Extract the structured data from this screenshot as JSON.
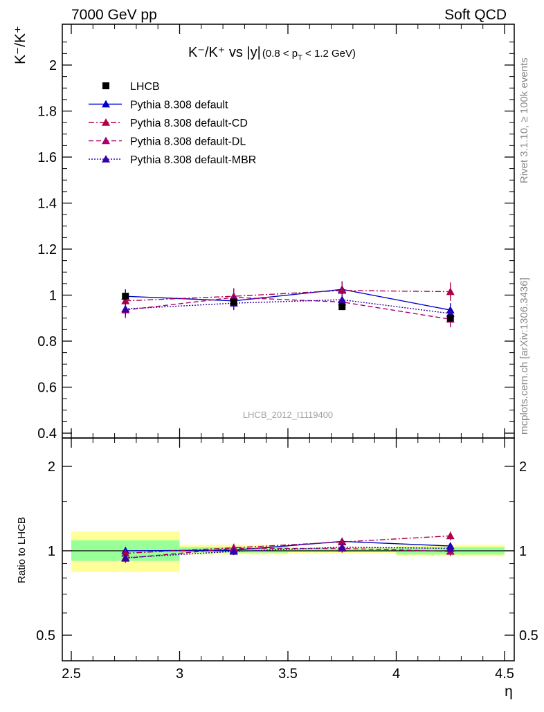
{
  "header": {
    "left": "7000 GeV pp",
    "right": "Soft QCD"
  },
  "title": {
    "main": "K⁻/K⁺ vs |y|",
    "range_open": "(0.8 < p",
    "range_sub": "T",
    "range_close": " < 1.2 GeV)"
  },
  "side_labels": {
    "rivet": "Rivet 3.1.10, ≥ 100k events",
    "mcplots": "mcplots.cern.ch [arXiv:1306.3436]"
  },
  "watermark": "LHCB_2012_I1119400",
  "colors": {
    "data": "#000000",
    "default": "#0000cc",
    "cd": "#b0004a",
    "dl": "#a8006a",
    "mbr": "#3300aa",
    "band_inner": "#99ff99",
    "band_outer": "#ffff99"
  },
  "chart_data": [
    {
      "type": "line",
      "panel": "main",
      "ylabel": "K⁻/K⁺",
      "xlim": [
        2.5,
        4.5
      ],
      "ylim": [
        0.38,
        2.18
      ],
      "yticks": [
        0.4,
        0.6,
        0.8,
        1.0,
        1.2,
        1.4,
        1.6,
        1.8,
        2.0
      ],
      "ytick_labels": [
        "0.4",
        "0.6",
        "0.8",
        "1",
        "1.2",
        "1.4",
        "1.6",
        "1.8",
        "2"
      ],
      "x": [
        2.75,
        3.25,
        3.75,
        4.25
      ],
      "series": [
        {
          "name": "LHCB",
          "style": "data",
          "values": [
            0.995,
            0.97,
            0.95,
            0.9
          ],
          "errors": [
            0.015,
            0.015,
            0.01,
            0.015
          ]
        },
        {
          "name": "Pythia 8.308 default",
          "style": "solid",
          "values": [
            0.995,
            0.975,
            1.025,
            0.935
          ],
          "errors": [
            0.03,
            0.03,
            0.035,
            0.03
          ]
        },
        {
          "name": "Pythia 8.308 default-CD",
          "style": "dashdot",
          "values": [
            0.975,
            0.995,
            1.02,
            1.015
          ],
          "errors": [
            0.035,
            0.035,
            0.035,
            0.04
          ]
        },
        {
          "name": "Pythia 8.308 default-DL",
          "style": "dashed",
          "values": [
            0.935,
            0.99,
            0.97,
            0.895
          ],
          "errors": [
            0.035,
            0.035,
            0.035,
            0.035
          ]
        },
        {
          "name": "Pythia 8.308 default-MBR",
          "style": "dotted",
          "values": [
            0.94,
            0.965,
            0.98,
            0.92
          ],
          "errors": [
            0.03,
            0.03,
            0.03,
            0.03
          ]
        }
      ],
      "legend": "top-left"
    },
    {
      "type": "line",
      "panel": "ratio",
      "ylabel": "Ratio to LHCB",
      "xlabel": "η",
      "xlim": [
        2.5,
        4.5
      ],
      "ylim": [
        0.425,
        2.35
      ],
      "log_scale": true,
      "xticks": [
        2.5,
        3.0,
        3.5,
        4.0,
        4.5
      ],
      "xtick_labels": [
        "2.5",
        "3",
        "3.5",
        "4",
        "4.5"
      ],
      "yticks": [
        0.5,
        1,
        2
      ],
      "ytick_labels": [
        "0.5",
        "1",
        "2"
      ],
      "x": [
        2.75,
        3.25,
        3.75,
        4.25
      ],
      "bins": [
        [
          2.5,
          3.0
        ],
        [
          3.0,
          3.5
        ],
        [
          3.5,
          4.0
        ],
        [
          4.0,
          4.5
        ]
      ],
      "band_inner": [
        [
          0.92,
          1.09
        ],
        [
          0.985,
          1.03
        ],
        [
          0.99,
          1.02
        ],
        [
          0.97,
          1.03
        ]
      ],
      "band_outer": [
        [
          0.84,
          1.17
        ],
        [
          0.97,
          1.05
        ],
        [
          0.98,
          1.03
        ],
        [
          0.955,
          1.05
        ]
      ],
      "series": [
        {
          "name": "Pythia 8.308 default",
          "style": "solid",
          "values": [
            1.0,
            1.005,
            1.08,
            1.04
          ],
          "errors": [
            0.03,
            0.03,
            0.03,
            0.03
          ]
        },
        {
          "name": "Pythia 8.308 default-CD",
          "style": "dashdot",
          "values": [
            0.98,
            1.025,
            1.075,
            1.13
          ],
          "errors": [
            0.035,
            0.035,
            0.035,
            0.04
          ]
        },
        {
          "name": "Pythia 8.308 default-DL",
          "style": "dashed",
          "values": [
            0.94,
            1.02,
            1.02,
            0.995
          ],
          "errors": [
            0.035,
            0.035,
            0.035,
            0.035
          ]
        },
        {
          "name": "Pythia 8.308 default-MBR",
          "style": "dotted",
          "values": [
            0.945,
            0.995,
            1.03,
            1.02
          ],
          "errors": [
            0.03,
            0.03,
            0.03,
            0.03
          ]
        }
      ]
    }
  ]
}
